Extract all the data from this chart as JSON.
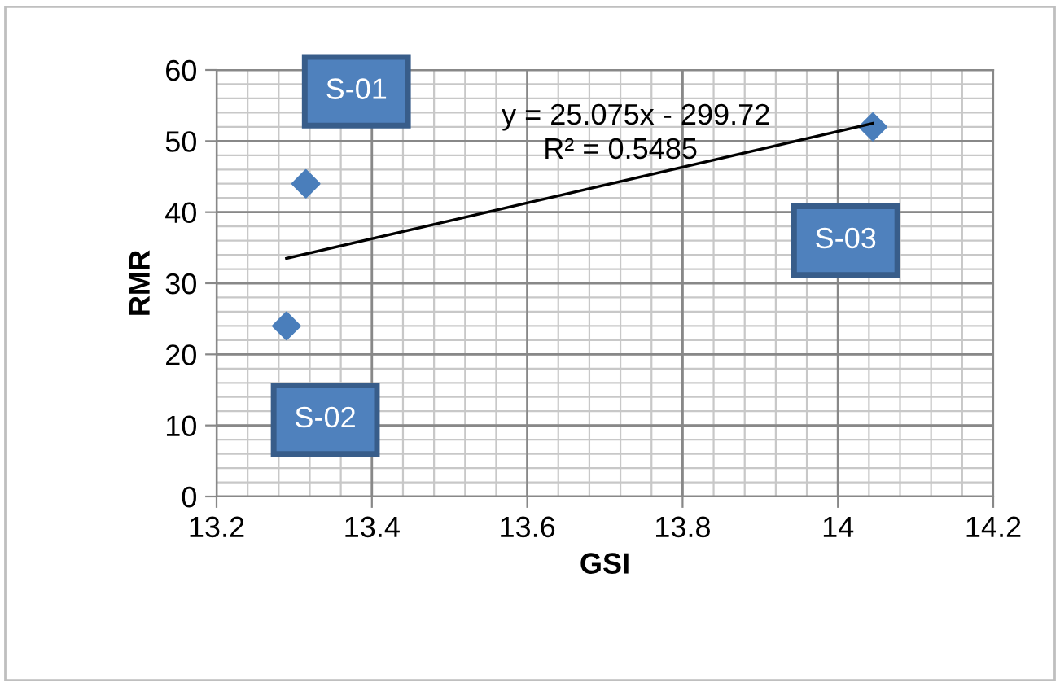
{
  "chart_data": {
    "type": "scatter",
    "xlabel": "GSI",
    "ylabel": "RMR",
    "xlim": [
      13.2,
      14.2
    ],
    "xticks": [
      13.2,
      13.4,
      13.6,
      13.8,
      14,
      14.2
    ],
    "ylim": [
      0,
      60
    ],
    "yticks": [
      0,
      10,
      20,
      30,
      40,
      50,
      60
    ],
    "grid": true,
    "legend": false,
    "series": [
      {
        "color": "#4a7ebb",
        "marker": "diamond",
        "x": [
          13.29,
          13.315,
          14.045
        ],
        "values": [
          24,
          44,
          52
        ]
      },
      {
        "type": "line",
        "color": "#000000",
        "x": [
          13.29,
          14.045
        ],
        "values": [
          33.5,
          52.5
        ]
      }
    ],
    "annotations": [
      "S-01",
      "S-02",
      "S-03",
      "y = 25.075x - 299.72",
      "R² = 0.5485"
    ]
  }
}
